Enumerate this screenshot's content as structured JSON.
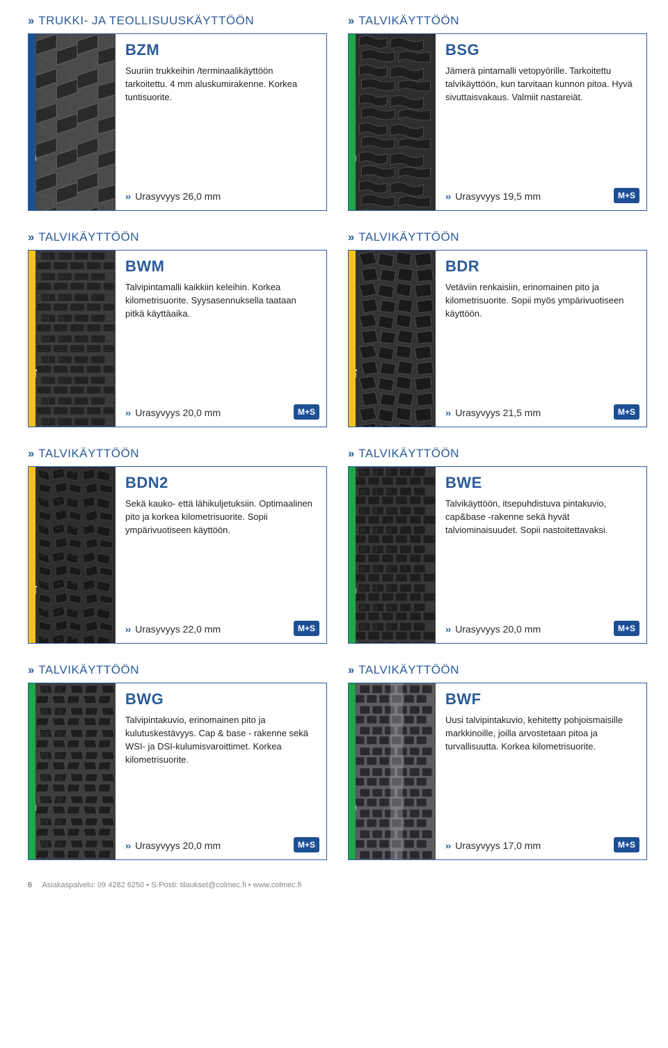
{
  "categories": {
    "truck": "Trukki- ja teollisuuskäyttöön",
    "winter": "Talvikäyttöön"
  },
  "arrow": "››",
  "tiers": {
    "base": "B_base",
    "tech": "B_tech",
    "plus": "B_plus"
  },
  "ms_label": "M+S",
  "products": [
    {
      "cat": "truck",
      "stripe": "blue",
      "tier": "base",
      "pattern": "bzm",
      "name": "BZM",
      "desc": "Suuriin trukkeihin /terminaalikäyttöön tarkoitettu. 4 mm aluskumirakenne. Korkea tuntisuorite.",
      "tread": "Urasyvyys 26,0 mm",
      "ms": false
    },
    {
      "cat": "winter",
      "stripe": "green",
      "tier": "tech",
      "pattern": "bsg",
      "name": "BSG",
      "desc": "Jämerä pintamalli vetopyörille. Tarkoitettu talvikäyttöön, kun tarvitaan kunnon pitoa. Hyvä sivuttaisvakaus. Valmiit nastareiät.",
      "tread": "Urasyvyys 19,5 mm",
      "ms": true
    },
    {
      "cat": "winter",
      "stripe": "yellow",
      "tier": "plus",
      "pattern": "bwm",
      "name": "BWM",
      "desc": "Talvipintamalli kaikkiin keleihin. Korkea kilometrisuorite. Syysasennuksella taataan pitkä käyttäaika.",
      "tread": "Urasyvyys 20,0 mm",
      "ms": true
    },
    {
      "cat": "winter",
      "stripe": "yellow",
      "tier": "plus",
      "pattern": "bdr",
      "name": "BDR",
      "desc": "Vetäviin renkaisiin, erinomainen pito ja kilometrisuorite. Sopii myös ympärivuotiseen käyttöön.",
      "tread": "Urasyvyys 21,5 mm",
      "ms": true
    },
    {
      "cat": "winter",
      "stripe": "yellow",
      "tier": "plus",
      "pattern": "bdn2",
      "name": "BDN2",
      "desc": "Sekä kauko- että lähikuljetuksiin. Optimaalinen pito ja korkea kilometrisuorite. Sopii ympärivuotiseen käyttöön.",
      "tread": "Urasyvyys 22,0 mm",
      "ms": true
    },
    {
      "cat": "winter",
      "stripe": "green",
      "tier": "tech",
      "pattern": "bwe",
      "name": "BWE",
      "desc": "Talvikäyttöön, itsepuhdistuva pintakuvio, cap&base -rakenne sekä hyvät talviominaisuudet. Sopii nastoitettavaksi.",
      "tread": "Urasyvyys 20,0 mm",
      "ms": true
    },
    {
      "cat": "winter",
      "stripe": "green",
      "tier": "tech",
      "pattern": "bwg",
      "name": "BWG",
      "desc": "Talvipintakuvio, erinomainen pito ja kulutuskestävyys. Cap & base - rakenne sekä WSI- ja DSI-kulumisvaroittimet. Korkea kilometrisuorite.",
      "tread": "Urasyvyys 20,0 mm",
      "ms": true
    },
    {
      "cat": "winter",
      "stripe": "green",
      "tier": "tech",
      "pattern": "bwf",
      "name": "BWF",
      "desc": "Uusi talvipintakuvio, kehitetty pohjoismaisille markkinoille, joilla arvostetaan pitoa ja turvallisuutta. Korkea kilometrisuorite.",
      "tread": "Urasyvyys 17,0 mm",
      "ms": true
    }
  ],
  "footer": {
    "page": "6",
    "text": "Asiakaspalvelu: 09 4282 6250 • S-Posti: tilaukset@colmec.fi • www.colmec.fi"
  },
  "colors": {
    "primary": "#2b5b99",
    "stripe_blue": "#1e4f94",
    "stripe_green": "#1da849",
    "stripe_yellow": "#f5c21b",
    "tire_bg": "#333333"
  }
}
